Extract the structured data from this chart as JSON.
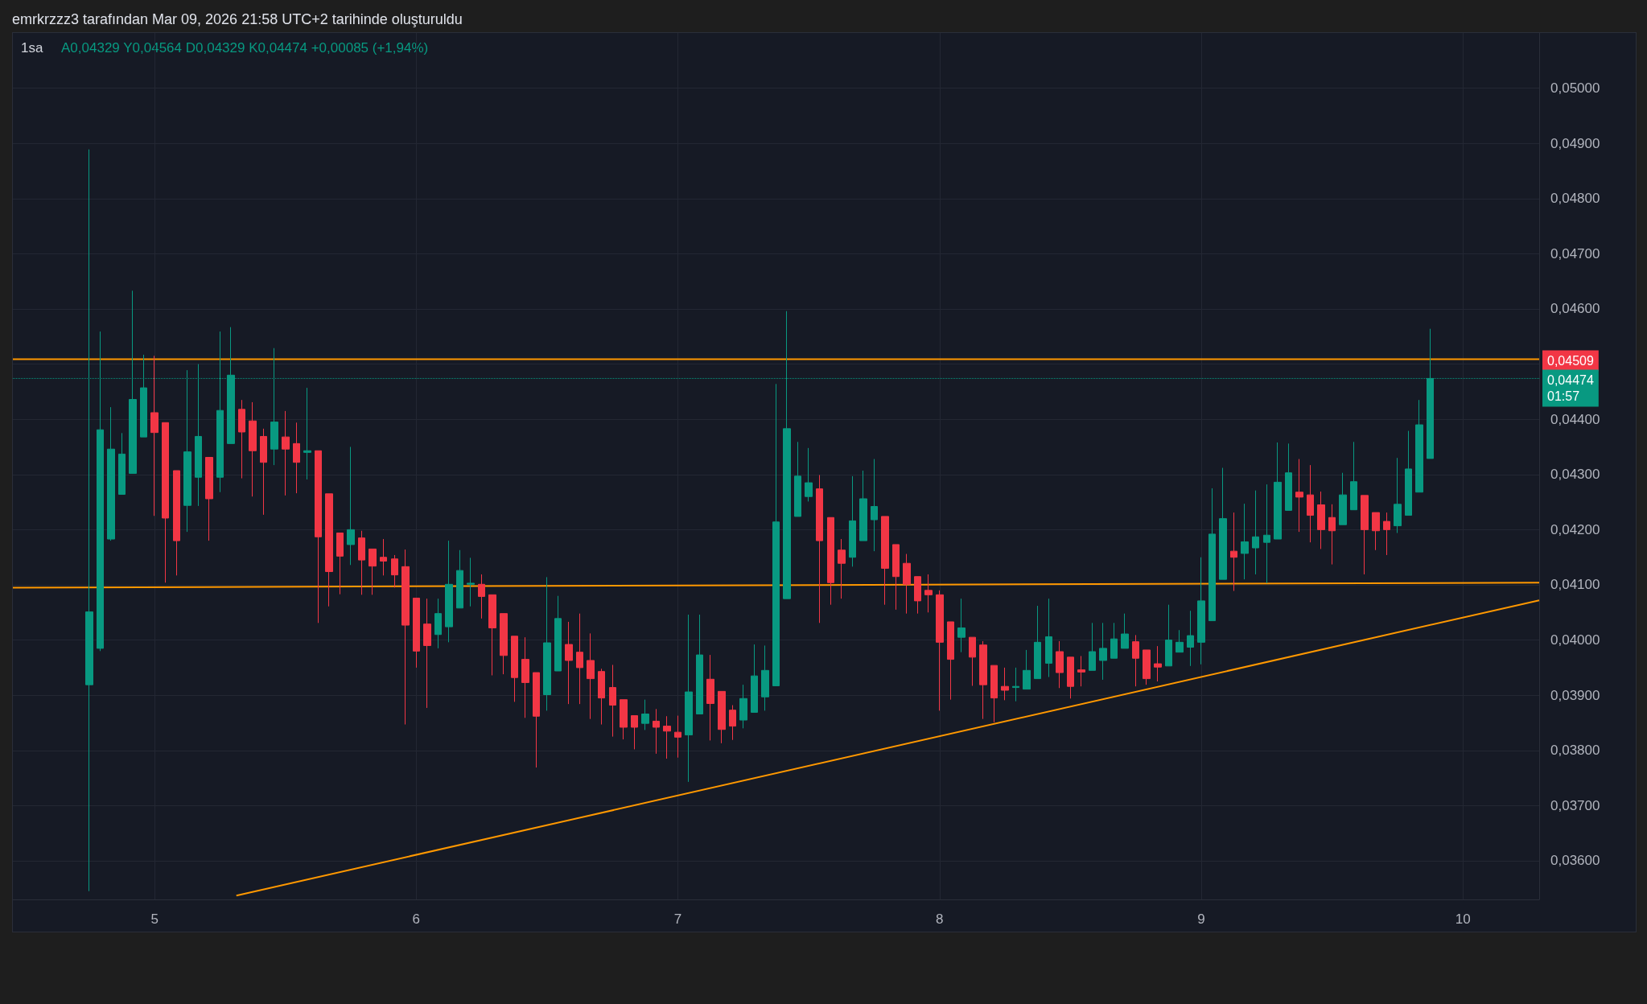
{
  "chart_data": {
    "type": "candlestick",
    "title": "emrkrzzz3 tarafından Mar 09, 2026 21:58 UTC+2 tarihinde oluşturuldu",
    "subtitle": "1sa",
    "annotations": [
      "A0,04329 Y0,04564 D0,04329 K0,04474 +0,00085 (+1,94%)"
    ],
    "x": [
      "2026-03-04T18:00",
      "2026-03-04T19:00",
      "2026-03-04T20:00",
      "2026-03-04T21:00",
      "2026-03-04T22:00",
      "2026-03-04T23:00",
      "2026-03-05T00:00",
      "2026-03-05T01:00",
      "2026-03-05T02:00",
      "2026-03-05T03:00",
      "2026-03-05T04:00",
      "2026-03-05T05:00",
      "2026-03-05T06:00",
      "2026-03-05T07:00",
      "2026-03-05T08:00",
      "2026-03-05T09:00",
      "2026-03-05T10:00",
      "2026-03-05T11:00",
      "2026-03-05T12:00",
      "2026-03-05T13:00",
      "2026-03-05T14:00",
      "2026-03-05T15:00",
      "2026-03-05T16:00",
      "2026-03-05T17:00",
      "2026-03-05T18:00",
      "2026-03-05T19:00",
      "2026-03-05T20:00",
      "2026-03-05T21:00",
      "2026-03-05T22:00",
      "2026-03-05T23:00",
      "2026-03-06T00:00",
      "2026-03-06T01:00",
      "2026-03-06T02:00",
      "2026-03-06T03:00",
      "2026-03-06T04:00",
      "2026-03-06T05:00",
      "2026-03-06T06:00",
      "2026-03-06T07:00",
      "2026-03-06T08:00",
      "2026-03-06T09:00",
      "2026-03-06T10:00",
      "2026-03-06T11:00",
      "2026-03-06T12:00",
      "2026-03-06T13:00",
      "2026-03-06T14:00",
      "2026-03-06T15:00",
      "2026-03-06T16:00",
      "2026-03-06T17:00",
      "2026-03-06T18:00",
      "2026-03-06T19:00",
      "2026-03-06T20:00",
      "2026-03-06T21:00",
      "2026-03-06T22:00",
      "2026-03-06T23:00",
      "2026-03-07T00:00",
      "2026-03-07T01:00",
      "2026-03-07T02:00",
      "2026-03-07T03:00",
      "2026-03-07T04:00",
      "2026-03-07T05:00",
      "2026-03-07T06:00",
      "2026-03-07T07:00",
      "2026-03-07T08:00",
      "2026-03-07T09:00",
      "2026-03-07T10:00",
      "2026-03-07T11:00",
      "2026-03-07T12:00",
      "2026-03-07T13:00",
      "2026-03-07T14:00",
      "2026-03-07T15:00",
      "2026-03-07T16:00",
      "2026-03-07T17:00",
      "2026-03-07T18:00",
      "2026-03-07T19:00",
      "2026-03-07T20:00",
      "2026-03-07T21:00",
      "2026-03-07T22:00",
      "2026-03-07T23:00",
      "2026-03-08T00:00",
      "2026-03-08T01:00",
      "2026-03-08T02:00",
      "2026-03-08T03:00",
      "2026-03-08T04:00",
      "2026-03-08T05:00",
      "2026-03-08T06:00",
      "2026-03-08T07:00",
      "2026-03-08T08:00",
      "2026-03-08T09:00",
      "2026-03-08T10:00",
      "2026-03-08T11:00",
      "2026-03-08T12:00",
      "2026-03-08T13:00",
      "2026-03-08T14:00",
      "2026-03-08T15:00",
      "2026-03-08T16:00",
      "2026-03-08T17:00",
      "2026-03-08T18:00",
      "2026-03-08T19:00",
      "2026-03-08T20:00",
      "2026-03-08T21:00",
      "2026-03-08T22:00",
      "2026-03-08T23:00",
      "2026-03-09T00:00",
      "2026-03-09T01:00",
      "2026-03-09T02:00",
      "2026-03-09T03:00",
      "2026-03-09T04:00",
      "2026-03-09T05:00",
      "2026-03-09T06:00",
      "2026-03-09T07:00",
      "2026-03-09T08:00",
      "2026-03-09T09:00",
      "2026-03-09T10:00",
      "2026-03-09T11:00",
      "2026-03-09T12:00",
      "2026-03-09T13:00",
      "2026-03-09T14:00",
      "2026-03-09T15:00",
      "2026-03-09T16:00",
      "2026-03-09T17:00",
      "2026-03-09T18:00",
      "2026-03-09T19:00",
      "2026-03-09T20:00",
      "2026-03-09T21:00"
    ],
    "ohlc": [
      [
        0.03919,
        0.04889,
        0.03545,
        0.04051
      ],
      [
        0.03985,
        0.04559,
        0.0398,
        0.04381
      ],
      [
        0.04183,
        0.04422,
        0.0418,
        0.04346
      ],
      [
        0.04264,
        0.04375,
        0.04264,
        0.04337
      ],
      [
        0.04302,
        0.04633,
        0.04302,
        0.04436
      ],
      [
        0.04368,
        0.04517,
        0.04368,
        0.04457
      ],
      [
        0.04412,
        0.04515,
        0.04225,
        0.04376
      ],
      [
        0.04394,
        0.04394,
        0.04104,
        0.04221
      ],
      [
        0.04307,
        0.04307,
        0.04117,
        0.0418
      ],
      [
        0.04244,
        0.04489,
        0.04196,
        0.04341
      ],
      [
        0.04295,
        0.045,
        0.04243,
        0.04369
      ],
      [
        0.04331,
        0.04331,
        0.0418,
        0.04256
      ],
      [
        0.04295,
        0.04559,
        0.04268,
        0.04416
      ],
      [
        0.04356,
        0.04567,
        0.04356,
        0.0448
      ],
      [
        0.04418,
        0.04435,
        0.04293,
        0.04377
      ],
      [
        0.04397,
        0.04431,
        0.0426,
        0.04343
      ],
      [
        0.04369,
        0.04383,
        0.04227,
        0.04322
      ],
      [
        0.04346,
        0.04529,
        0.04317,
        0.04395
      ],
      [
        0.04368,
        0.04415,
        0.04262,
        0.04346
      ],
      [
        0.04356,
        0.04394,
        0.04266,
        0.04322
      ],
      [
        0.0434,
        0.04457,
        0.04291,
        0.04343
      ],
      [
        0.04343,
        0.04343,
        0.04031,
        0.04187
      ],
      [
        0.04265,
        0.04265,
        0.04061,
        0.04124
      ],
      [
        0.04194,
        0.04194,
        0.04083,
        0.04152
      ],
      [
        0.04173,
        0.0435,
        0.04136,
        0.042
      ],
      [
        0.04185,
        0.04198,
        0.04082,
        0.04145
      ],
      [
        0.04165,
        0.04165,
        0.04082,
        0.04134
      ],
      [
        0.0415,
        0.04183,
        0.04117,
        0.04143
      ],
      [
        0.04147,
        0.04154,
        0.04095,
        0.04118
      ],
      [
        0.04133,
        0.04164,
        0.03847,
        0.04027
      ],
      [
        0.04076,
        0.04076,
        0.0395,
        0.0398
      ],
      [
        0.04029,
        0.04075,
        0.03877,
        0.0399
      ],
      [
        0.0401,
        0.04075,
        0.03985,
        0.04048
      ],
      [
        0.04024,
        0.0418,
        0.03996,
        0.04101
      ],
      [
        0.04058,
        0.04163,
        0.04058,
        0.04126
      ],
      [
        0.04101,
        0.04149,
        0.04061,
        0.04103
      ],
      [
        0.04101,
        0.04119,
        0.04039,
        0.04079
      ],
      [
        0.04082,
        0.04082,
        0.03936,
        0.04022
      ],
      [
        0.04048,
        0.04048,
        0.03938,
        0.03972
      ],
      [
        0.04007,
        0.04007,
        0.03888,
        0.03932
      ],
      [
        0.03965,
        0.04005,
        0.03859,
        0.03923
      ],
      [
        0.03941,
        0.03941,
        0.03769,
        0.03862
      ],
      [
        0.03901,
        0.04114,
        0.03872,
        0.03995
      ],
      [
        0.03944,
        0.0408,
        0.03944,
        0.04039
      ],
      [
        0.03992,
        0.04033,
        0.03884,
        0.03963
      ],
      [
        0.03978,
        0.04048,
        0.03884,
        0.0395
      ],
      [
        0.03963,
        0.04012,
        0.03857,
        0.0393
      ],
      [
        0.03943,
        0.03948,
        0.03847,
        0.03895
      ],
      [
        0.03914,
        0.03955,
        0.03825,
        0.03882
      ],
      [
        0.03892,
        0.03892,
        0.0382,
        0.03842
      ],
      [
        0.03863,
        0.03863,
        0.03802,
        0.03842
      ],
      [
        0.03849,
        0.03892,
        0.03837,
        0.03866
      ],
      [
        0.03853,
        0.03875,
        0.03794,
        0.03842
      ],
      [
        0.03844,
        0.03862,
        0.03785,
        0.03835
      ],
      [
        0.03833,
        0.03863,
        0.03787,
        0.03824
      ],
      [
        0.03828,
        0.04046,
        0.03743,
        0.03906
      ],
      [
        0.03866,
        0.04046,
        0.03866,
        0.03973
      ],
      [
        0.03929,
        0.03973,
        0.03818,
        0.03885
      ],
      [
        0.03907,
        0.03907,
        0.03813,
        0.03838
      ],
      [
        0.03873,
        0.03882,
        0.03819,
        0.03844
      ],
      [
        0.03855,
        0.03919,
        0.0384,
        0.03894
      ],
      [
        0.03869,
        0.03992,
        0.03869,
        0.03935
      ],
      [
        0.03897,
        0.0399,
        0.03872,
        0.03945
      ],
      [
        0.03917,
        0.04464,
        0.03917,
        0.04214
      ],
      [
        0.04075,
        0.04596,
        0.04075,
        0.04383
      ],
      [
        0.04224,
        0.04359,
        0.04224,
        0.04297
      ],
      [
        0.0426,
        0.04348,
        0.04251,
        0.04285
      ],
      [
        0.04274,
        0.04299,
        0.04031,
        0.0418
      ],
      [
        0.04222,
        0.04222,
        0.04064,
        0.04104
      ],
      [
        0.04163,
        0.04183,
        0.04075,
        0.04139
      ],
      [
        0.0415,
        0.04297,
        0.04133,
        0.04216
      ],
      [
        0.0418,
        0.04307,
        0.0418,
        0.04256
      ],
      [
        0.04218,
        0.04328,
        0.04161,
        0.04242
      ],
      [
        0.04224,
        0.04224,
        0.04064,
        0.0413
      ],
      [
        0.04173,
        0.04173,
        0.04055,
        0.04115
      ],
      [
        0.04139,
        0.04156,
        0.04048,
        0.04101
      ],
      [
        0.04115,
        0.04115,
        0.04048,
        0.04071
      ],
      [
        0.0409,
        0.04119,
        0.0405,
        0.04082
      ],
      [
        0.04082,
        0.0409,
        0.03872,
        0.03996
      ],
      [
        0.04033,
        0.04033,
        0.03892,
        0.03965
      ],
      [
        0.04005,
        0.04075,
        0.03978,
        0.04022
      ],
      [
        0.04005,
        0.04005,
        0.03917,
        0.03969
      ],
      [
        0.03991,
        0.03998,
        0.03857,
        0.03919
      ],
      [
        0.03954,
        0.03954,
        0.03851,
        0.03895
      ],
      [
        0.03916,
        0.0395,
        0.03891,
        0.03909
      ],
      [
        0.03914,
        0.0395,
        0.03889,
        0.03916
      ],
      [
        0.03911,
        0.03982,
        0.03911,
        0.03945
      ],
      [
        0.0393,
        0.04062,
        0.0393,
        0.03996
      ],
      [
        0.03958,
        0.04075,
        0.03933,
        0.04006
      ],
      [
        0.03979,
        0.03998,
        0.03913,
        0.03941
      ],
      [
        0.03969,
        0.03969,
        0.03894,
        0.03916
      ],
      [
        0.03946,
        0.03971,
        0.03916,
        0.03942
      ],
      [
        0.03945,
        0.04031,
        0.03945,
        0.03979
      ],
      [
        0.03963,
        0.04031,
        0.03928,
        0.03985
      ],
      [
        0.03967,
        0.04031,
        0.03967,
        0.04002
      ],
      [
        0.03985,
        0.04048,
        0.03985,
        0.04011
      ],
      [
        0.03997,
        0.04009,
        0.03916,
        0.03967
      ],
      [
        0.03982,
        0.03982,
        0.03919,
        0.0393
      ],
      [
        0.03957,
        0.03989,
        0.03925,
        0.03951
      ],
      [
        0.03953,
        0.04064,
        0.03953,
        0.04
      ],
      [
        0.03978,
        0.04018,
        0.03978,
        0.03996
      ],
      [
        0.03987,
        0.04053,
        0.03953,
        0.04008
      ],
      [
        0.03996,
        0.0415,
        0.03956,
        0.04071
      ],
      [
        0.04035,
        0.04275,
        0.04035,
        0.04192
      ],
      [
        0.0411,
        0.04312,
        0.0411,
        0.0422
      ],
      [
        0.04161,
        0.04231,
        0.04089,
        0.0415
      ],
      [
        0.04157,
        0.04247,
        0.0411,
        0.04178
      ],
      [
        0.04167,
        0.04271,
        0.04119,
        0.04187
      ],
      [
        0.04177,
        0.04282,
        0.04103,
        0.0419
      ],
      [
        0.04183,
        0.04358,
        0.04183,
        0.04286
      ],
      [
        0.04235,
        0.04356,
        0.04235,
        0.04303
      ],
      [
        0.04268,
        0.04328,
        0.04196,
        0.04259
      ],
      [
        0.04263,
        0.04317,
        0.04177,
        0.04226
      ],
      [
        0.04245,
        0.04269,
        0.04165,
        0.042
      ],
      [
        0.04222,
        0.04246,
        0.04137,
        0.04198
      ],
      [
        0.04209,
        0.04303,
        0.04209,
        0.04263
      ],
      [
        0.04236,
        0.04359,
        0.04236,
        0.04287
      ],
      [
        0.04262,
        0.04262,
        0.04119,
        0.042
      ],
      [
        0.04231,
        0.04231,
        0.04163,
        0.04198
      ],
      [
        0.04215,
        0.04231,
        0.04154,
        0.042
      ],
      [
        0.04207,
        0.0433,
        0.04194,
        0.04246
      ],
      [
        0.04226,
        0.04379,
        0.04226,
        0.0431
      ],
      [
        0.04268,
        0.04435,
        0.04268,
        0.0439
      ],
      [
        0.04329,
        0.04564,
        0.04329,
        0.04474
      ]
    ],
    "series": [
      {
        "type": "line",
        "color": "#ff9800",
        "x": [
          "2026-03-04T11:00",
          "2026-03-10T07:00"
        ],
        "values": [
          0.04095,
          0.04104
        ]
      },
      {
        "type": "line",
        "color": "#ff9800",
        "x": [
          "2026-03-05T07:30",
          "2026-03-10T07:00"
        ],
        "values": [
          0.03537,
          0.04072
        ]
      }
    ],
    "ref_lines": [
      {
        "axis": "y",
        "value": 0.04509,
        "label": "0,04509",
        "color": "#ff9800",
        "line_style": "solid"
      },
      {
        "axis": "y",
        "value": 0.04474,
        "label": "0,04474\n01:57",
        "color": "#089981",
        "line_style": "dotted"
      }
    ],
    "xlim": [
      "2026-03-04T11:00",
      "2026-03-10T07:00"
    ],
    "xticks": [
      {
        "value": "2026-03-05",
        "label": "5"
      },
      {
        "value": "2026-03-06",
        "label": "6"
      },
      {
        "value": "2026-03-07",
        "label": "7"
      },
      {
        "value": "2026-03-08",
        "label": "8"
      },
      {
        "value": "2026-03-09",
        "label": "9"
      },
      {
        "value": "2026-03-10",
        "label": "10"
      }
    ],
    "ylim": [
      0.0353,
      0.051
    ],
    "yticks": [
      {
        "value": 0.036,
        "label": "0,03600"
      },
      {
        "value": 0.037,
        "label": "0,03700"
      },
      {
        "value": 0.038,
        "label": "0,03800"
      },
      {
        "value": 0.039,
        "label": "0,03900"
      },
      {
        "value": 0.04,
        "label": "0,04000"
      },
      {
        "value": 0.041,
        "label": "0,04100"
      },
      {
        "value": 0.042,
        "label": "0,04200"
      },
      {
        "value": 0.043,
        "label": "0,04300"
      },
      {
        "value": 0.044,
        "label": "0,04400"
      },
      {
        "value": 0.045,
        "label": null
      },
      {
        "value": 0.046,
        "label": "0,04600"
      },
      {
        "value": 0.047,
        "label": "0,04700"
      },
      {
        "value": 0.048,
        "label": "0,04800"
      },
      {
        "value": 0.049,
        "label": "0,04900"
      },
      {
        "value": 0.05,
        "label": "0,05000"
      }
    ],
    "grid": true
  }
}
